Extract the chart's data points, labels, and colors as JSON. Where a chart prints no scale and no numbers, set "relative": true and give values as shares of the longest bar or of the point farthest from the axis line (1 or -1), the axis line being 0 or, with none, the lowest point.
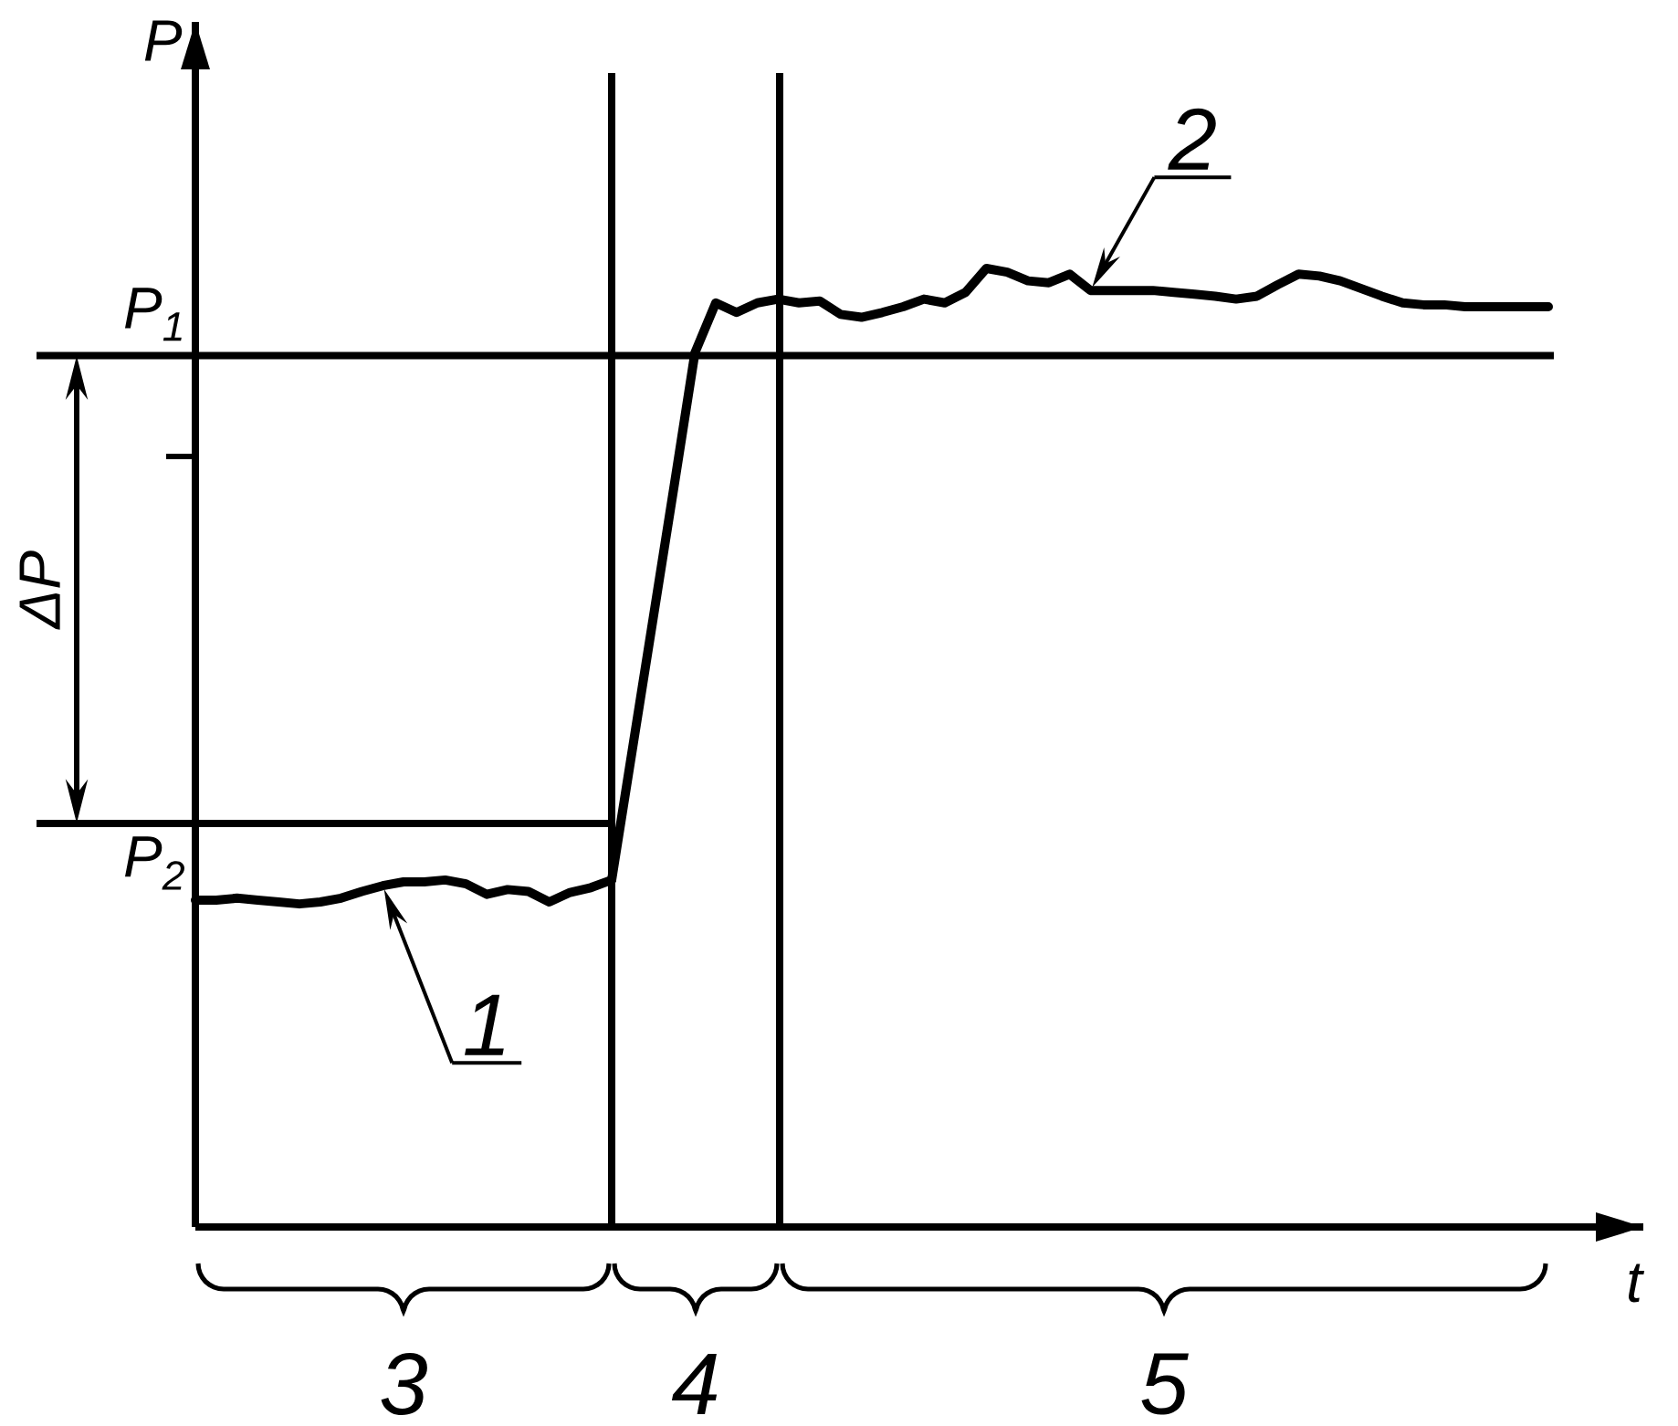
{
  "chart_data": {
    "type": "line",
    "relative": true,
    "ylabel": "P",
    "xlabel": "t",
    "grid": "x",
    "categories": [
      null,
      null,
      null,
      null,
      null,
      null,
      null,
      null,
      null,
      null,
      null,
      null,
      null,
      null,
      null,
      null,
      null,
      null,
      null,
      null,
      null,
      null,
      null,
      null,
      null,
      null,
      null,
      null,
      null,
      null,
      null,
      null,
      null,
      null,
      null,
      null,
      null,
      null,
      null,
      null,
      null,
      null,
      null,
      null,
      null,
      null,
      null,
      null,
      null,
      null,
      null,
      null,
      null,
      null,
      null,
      null,
      null,
      null,
      null,
      null,
      null,
      null,
      null,
      null,
      null,
      null
    ],
    "series": [
      {
        "name": "1",
        "color": "#000000",
        "values": [
          0.341,
          0.341,
          0.343,
          0.341,
          0.339,
          0.337,
          0.339,
          0.343,
          0.35,
          0.356,
          0.36,
          0.36,
          0.362,
          0.358,
          0.347,
          0.352,
          0.35,
          0.339,
          0.349,
          0.354,
          0.362,
          null,
          null,
          null,
          null,
          null,
          null,
          null,
          null,
          null,
          null,
          null,
          null,
          null,
          null,
          null,
          null,
          null,
          null,
          null,
          null,
          null,
          null,
          null,
          null,
          null,
          null,
          null,
          null,
          null,
          null,
          null,
          null,
          null,
          null,
          null,
          null,
          null,
          null,
          null,
          null,
          null,
          null,
          null,
          null,
          null
        ]
      },
      {
        "name": "2",
        "color": "#000000",
        "values": [
          null,
          null,
          null,
          null,
          null,
          null,
          null,
          null,
          null,
          null,
          null,
          null,
          null,
          null,
          null,
          null,
          null,
          null,
          null,
          null,
          0.362,
          0.499,
          0.636,
          0.773,
          0.912,
          0.964,
          0.954,
          0.964,
          0.968,
          0.964,
          0.966,
          0.952,
          0.949,
          0.954,
          0.96,
          0.968,
          0.964,
          0.975,
          1.0,
          0.996,
          0.987,
          0.985,
          0.994,
          0.977,
          0.977,
          0.977,
          0.977,
          0.975,
          0.973,
          0.971,
          0.968,
          0.971,
          0.983,
          0.994,
          0.992,
          0.987,
          0.979,
          0.971,
          0.964,
          0.962,
          0.962,
          0.96,
          0.96,
          0.96,
          0.96,
          0.96
        ]
      }
    ],
    "ref_lines": [
      {
        "axis": "y",
        "value": 0.909,
        "label": "P$_{1}$"
      },
      {
        "axis": "y",
        "value": 0.421,
        "label": "P$_{2}$"
      }
    ],
    "annotations": [
      "ΔP",
      "3",
      "4",
      "5"
    ]
  }
}
